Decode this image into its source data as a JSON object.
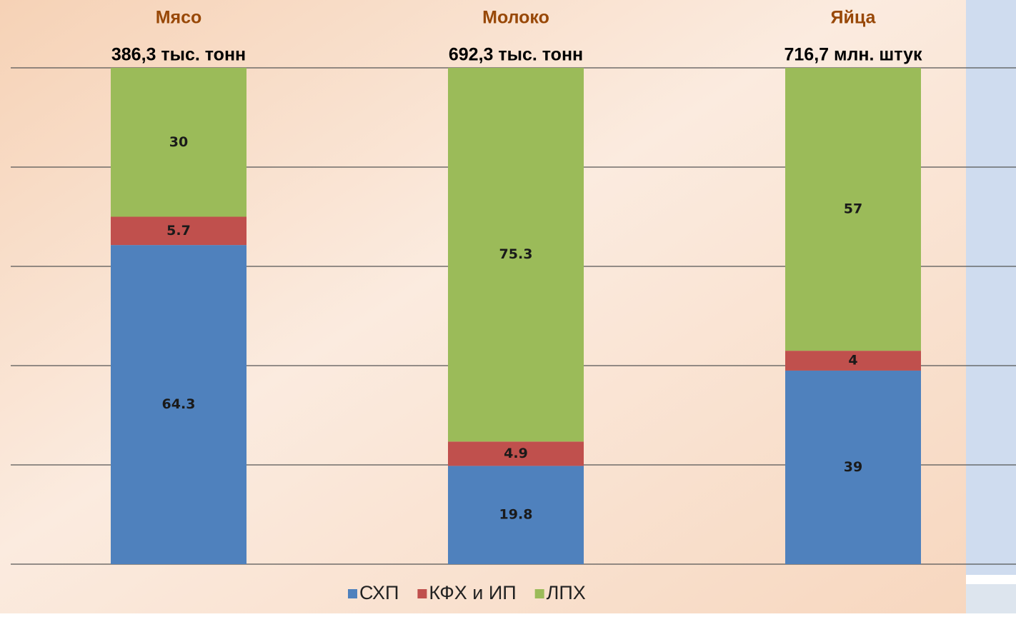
{
  "chart_data": {
    "type": "stacked_bar",
    "categories": [
      "Мясо",
      "Молоко",
      "Яйца"
    ],
    "category_subtitles": [
      "386,3 тыс. тонн",
      "692,3 тыс. тонн",
      "716,7 млн. штук"
    ],
    "series": [
      {
        "name": "СХП",
        "color": "#4f81bd",
        "values": [
          64.3,
          19.8,
          39
        ]
      },
      {
        "name": "КФХ и ИП",
        "color": "#c0504d",
        "values": [
          5.7,
          4.9,
          4
        ]
      },
      {
        "name": "ЛПХ",
        "color": "#9bbb59",
        "values": [
          30,
          75.3,
          57
        ]
      }
    ],
    "ylim": [
      0,
      100
    ],
    "yticks": [
      0,
      20,
      40,
      60,
      80,
      100
    ],
    "grid": true,
    "show_tick_labels": false,
    "legend": "bottom"
  }
}
